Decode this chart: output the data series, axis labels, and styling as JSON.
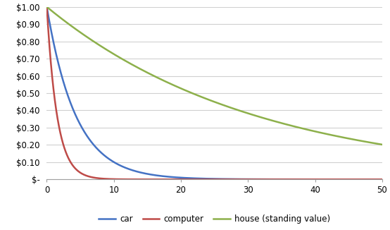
{
  "title": "",
  "car_rate": 0.23,
  "computer_rate": 0.65,
  "house_rate": 0.032,
  "x_max": 50,
  "x_ticks": [
    0,
    10,
    20,
    30,
    40,
    50
  ],
  "y_ticks": [
    0,
    0.1,
    0.2,
    0.3,
    0.4,
    0.5,
    0.6,
    0.7,
    0.8,
    0.9,
    1.0
  ],
  "y_labels": [
    "$-",
    "$0.10",
    "$0.20",
    "$0.30",
    "$0.40",
    "$0.50",
    "$0.60",
    "$0.70",
    "$0.80",
    "$0.90",
    "$1.00"
  ],
  "car_color": "#4472C4",
  "computer_color": "#BE4B48",
  "house_color": "#8DB04B",
  "legend_labels": [
    "car",
    "computer",
    "house (standing value)"
  ],
  "background_color": "#FFFFFF",
  "grid_color": "#D0D0D0",
  "line_width": 1.8
}
